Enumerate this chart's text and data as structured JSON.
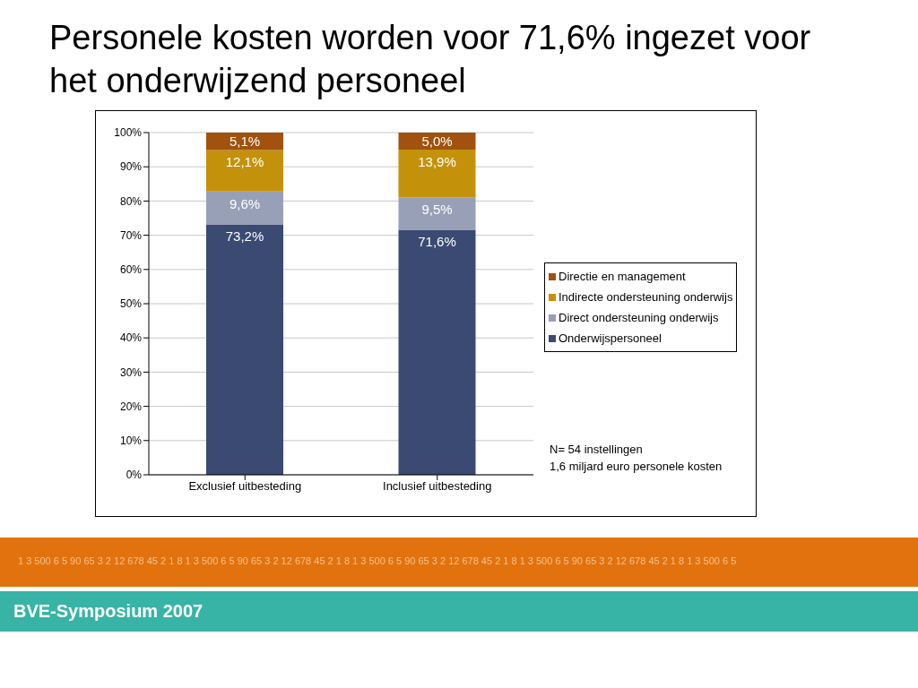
{
  "chart_data": {
    "type": "bar",
    "title": "Personele kosten worden voor 71,6% ingezet voor het onderwijzend personeel",
    "categories": [
      "Exclusief uitbesteding",
      "Inclusief uitbesteding"
    ],
    "stacked": true,
    "series": [
      {
        "name": "Onderwijspersoneel",
        "color": "#3b4a72",
        "values": [
          73.2,
          71.6
        ],
        "value_labels": [
          "73,2%",
          "71,6%"
        ]
      },
      {
        "name": "Direct ondersteuning onderwijs",
        "color": "#98a0b8",
        "values": [
          9.6,
          9.5
        ],
        "value_labels": [
          "9,6%",
          "9,5%"
        ]
      },
      {
        "name": "Indirecte ondersteuning onderwijs",
        "color": "#c4920a",
        "values": [
          12.1,
          13.9
        ],
        "value_labels": [
          "12,1%",
          "13,9%"
        ]
      },
      {
        "name": "Directie en management",
        "color": "#a0520e",
        "values": [
          5.1,
          5.0
        ],
        "value_labels": [
          "5,1%",
          "5,0%"
        ]
      }
    ],
    "ylim": [
      0,
      100
    ],
    "yticks": [
      {
        "value": 0,
        "label": "0%"
      },
      {
        "value": 10,
        "label": "10%"
      },
      {
        "value": 20,
        "label": "20%"
      },
      {
        "value": 30,
        "label": "30%"
      },
      {
        "value": 40,
        "label": "40%"
      },
      {
        "value": 50,
        "label": "50%"
      },
      {
        "value": 60,
        "label": "60%"
      },
      {
        "value": 70,
        "label": "70%"
      },
      {
        "value": 80,
        "label": "80%"
      },
      {
        "value": 90,
        "label": "90%"
      },
      {
        "value": 100,
        "label": "100%"
      }
    ],
    "grid": "y",
    "legend": "right",
    "annotations": [
      "N= 54 instellingen",
      "1,6 miljard euro personele kosten",
      "1 3 500 6 5 90 65 3 2 12 678 45 2 1 8 1 3 500 6 5 90 65 3 2 12 678 45 2 1 8 1 3 500 6 5 90 65 3 2 12 678 45 2 1 8 1 3 500 6 5 90 65 3 2 12 678 45 2 1 8 1 3 500 6 5",
      "BVE-Symposium 2007"
    ]
  }
}
